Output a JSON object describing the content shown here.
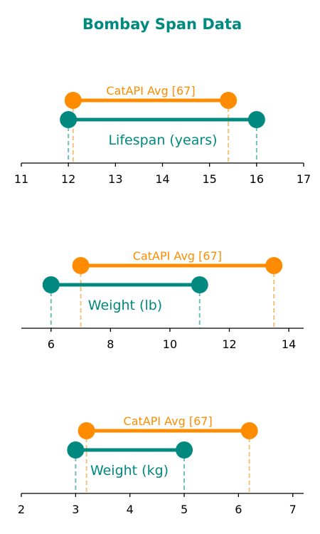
{
  "colors": {
    "primary": "#00897f",
    "secondary": "#ff8c00",
    "axis": "#000000"
  },
  "chart_data": {
    "title": "Bombay Span Data",
    "type": "range",
    "panels": [
      {
        "xlim": [
          11,
          17
        ],
        "ticks": [
          11,
          12,
          13,
          14,
          15,
          16,
          17
        ],
        "ranges": [
          {
            "name": "CatAPI Avg [67]",
            "low": 12.1,
            "high": 15.4,
            "role": "secondary"
          },
          {
            "name": "Lifespan (years)",
            "low": 12,
            "high": 16,
            "role": "primary"
          }
        ]
      },
      {
        "xlim": [
          5,
          14.5
        ],
        "ticks": [
          6,
          8,
          10,
          12,
          14
        ],
        "ranges": [
          {
            "name": "CatAPI Avg [67]",
            "low": 7,
            "high": 13.5,
            "role": "secondary"
          },
          {
            "name": "Weight (lb)",
            "low": 6,
            "high": 11,
            "role": "primary"
          }
        ]
      },
      {
        "xlim": [
          2,
          7.2
        ],
        "ticks": [
          2,
          3,
          4,
          5,
          6,
          7
        ],
        "ranges": [
          {
            "name": "CatAPI Avg [67]",
            "low": 3.2,
            "high": 6.2,
            "role": "secondary"
          },
          {
            "name": "Weight (kg)",
            "low": 3,
            "high": 5,
            "role": "primary"
          }
        ]
      }
    ]
  }
}
